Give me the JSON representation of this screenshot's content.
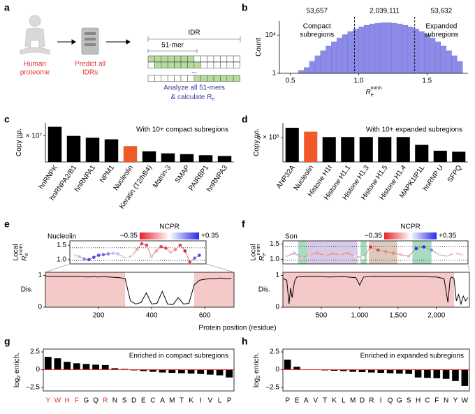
{
  "panel_labels": [
    "a",
    "b",
    "c",
    "d",
    "e",
    "f",
    "g",
    "h"
  ],
  "schematic": {
    "human_label": [
      "Human",
      "proteome"
    ],
    "predict_label": [
      "Predict all",
      "IDRs"
    ],
    "idr": "IDR",
    "kmer": "51-mer",
    "ellipsis": "...",
    "analyze": "Analyze all 51-mers",
    "calc": "& calculate R",
    "calc_sub": "e"
  },
  "position_axis_label": "Protein position (residue)",
  "chart_data": [
    {
      "type": "histogram",
      "ylabel": "Count",
      "xlabel": "R",
      "xlabel_sub": "e",
      "xlabel_sup": "norm",
      "log_y": true,
      "bins": [
        0.56,
        0.6,
        0.64,
        0.68,
        0.72,
        0.76,
        0.8,
        0.84,
        0.88,
        0.92,
        0.96,
        1,
        1.04,
        1.08,
        1.12,
        1.16,
        1.2,
        1.24,
        1.28,
        1.32,
        1.36,
        1.4,
        1.44,
        1.48,
        1.52,
        1.56,
        1.6,
        1.64,
        1.68,
        1.72,
        1.76
      ],
      "counts": [
        2,
        4,
        18,
        68,
        229,
        708,
        1950,
        4900,
        11200,
        22900,
        42700,
        70800,
        107000,
        145000,
        178000,
        195000,
        195000,
        178000,
        145000,
        107000,
        70800,
        42700,
        22900,
        11200,
        4900,
        1950,
        708,
        229,
        68,
        18
      ],
      "color": "#8c8ce8",
      "edge_color": "#6e6ed4",
      "ylim": [
        1,
        300000
      ],
      "yticks": [
        1,
        {
          "value": 10000,
          "label": "10⁴"
        }
      ],
      "xlim": [
        0.42,
        1.8
      ],
      "xticks": [
        0.5,
        {
          "value": 1,
          "label": "1.0"
        },
        1.5
      ],
      "thresholds": [
        0.97,
        1.41
      ],
      "count_labels": [
        "53,657",
        "2,039,111",
        "53,632"
      ],
      "region_labels": [
        [
          "Compact",
          "subregions"
        ],
        [
          "Expanded",
          "subregions"
        ]
      ]
    },
    {
      "type": "bar",
      "ylabel": "Copy no.",
      "annotation": "With 10+ compact subregions",
      "categories": [
        "hnRNPK",
        "hnRNPA2/B1",
        "hnRNPA1",
        "NPM1",
        "Nucleolin",
        "Keratin (T2/hB4)",
        "Matrin-3",
        "SMAP",
        "PAIRBP1",
        "hnRNPA3"
      ],
      "values": [
        13500000,
        10000000,
        9300000,
        8700000,
        6100000,
        4100000,
        3300000,
        3000000,
        2600000,
        2300000
      ],
      "colors": [
        "#000000",
        "#000000",
        "#000000",
        "#000000",
        "#f05a28",
        "#000000",
        "#000000",
        "#000000",
        "#000000",
        "#000000"
      ],
      "ylim": [
        0,
        15000000
      ],
      "yticks": [
        {
          "value": 10000000,
          "label": "1 × 10⁷"
        }
      ]
    },
    {
      "type": "bar",
      "ylabel": "Copy no.",
      "annotation": "With 10+ expanded subregions",
      "categories": [
        "ANP32A",
        "Nucleolin",
        "Histone H1t",
        "Histone H1.1",
        "Histone H1.3",
        "Histone H1.5",
        "Histone H1.4",
        "MAPK1IP1L",
        "hnRNP U",
        "SFPQ"
      ],
      "values": [
        7000000,
        6200000,
        5100000,
        5100000,
        5100000,
        5100000,
        5100000,
        3500000,
        2300000,
        2100000
      ],
      "colors": [
        "#000000",
        "#f05a28",
        "#000000",
        "#000000",
        "#000000",
        "#000000",
        "#000000",
        "#000000",
        "#000000",
        "#000000"
      ],
      "ylim": [
        0,
        8000000
      ],
      "yticks": [
        {
          "value": 5000000,
          "label": "5 × 10⁶"
        }
      ]
    },
    {
      "type": "profile",
      "name": "Nucleolin",
      "colorbar_title": "NCPR",
      "clim": [
        -0.35,
        0.35
      ],
      "cticks": [
        {
          "value": -0.35,
          "label": "−0.35"
        },
        {
          "value": 0.35,
          "label": "+0.35"
        }
      ],
      "cmap": [
        "#e8202a",
        "#ffffff",
        "#2a2ae8"
      ],
      "ylabel": "Local",
      "ylabel_main": "R",
      "ylabel_sub": "e",
      "ylabel_sup": "norm",
      "x": [
        25,
        50,
        75,
        100,
        125,
        150,
        175,
        200,
        225,
        250,
        275,
        300,
        325,
        350,
        375,
        400,
        425,
        450,
        475,
        500,
        525,
        550,
        575,
        600,
        625,
        650,
        675
      ],
      "re": [
        1.15,
        1.1,
        1.02,
        1.0,
        1.08,
        1.15,
        1.17,
        1.2,
        1.22,
        1.2,
        1.1,
        1.05,
        1.15,
        1.35,
        1.55,
        1.5,
        1.1,
        1.3,
        1.45,
        1.4,
        1.25,
        1.35,
        1.5,
        1.3,
        0.92,
        1.05,
        1.15
      ],
      "ncpr": [
        -0.05,
        0.1,
        0.2,
        0.3,
        0.3,
        0.3,
        0.25,
        0.2,
        0.1,
        0.1,
        0.05,
        0,
        -0.05,
        -0.15,
        -0.3,
        -0.3,
        -0.1,
        -0.15,
        -0.3,
        -0.3,
        -0.1,
        -0.2,
        -0.3,
        -0.35,
        -0.3,
        0.25,
        0.3
      ],
      "ylim": [
        0.85,
        1.65
      ],
      "yticks": [
        {
          "value": 1,
          "label": "1.0"
        },
        {
          "value": 1.5,
          "label": "1.5"
        }
      ],
      "thresholds": [
        0.97,
        1.41
      ],
      "dis_label": "Dis.",
      "dis_x": [
        0,
        20,
        40,
        60,
        80,
        100,
        120,
        140,
        160,
        180,
        200,
        220,
        240,
        260,
        280,
        300,
        320,
        340,
        360,
        380,
        400,
        420,
        440,
        460,
        480,
        500,
        520,
        540,
        560,
        580,
        600,
        620,
        640,
        660,
        680,
        700
      ],
      "dis": [
        0.98,
        0.97,
        0.97,
        0.96,
        0.97,
        0.96,
        0.97,
        0.96,
        0.95,
        0.96,
        0.95,
        0.96,
        0.95,
        0.94,
        0.93,
        0.9,
        0.2,
        0.1,
        0.15,
        0.45,
        0.1,
        0.12,
        0.5,
        0.1,
        0.08,
        0.3,
        0.1,
        0.12,
        0.7,
        0.85,
        0.88,
        0.9,
        0.9,
        0.92,
        0.9,
        0.91
      ],
      "dis_ylim": [
        0,
        1.1
      ],
      "dis_yticks": [
        0,
        1
      ],
      "regions": [
        {
          "start": 0,
          "end": 300,
          "color": "#f6c9c9"
        },
        {
          "start": 560,
          "end": 710,
          "color": "#f6c9c9"
        }
      ],
      "xlim": [
        0,
        710
      ],
      "xticks": [
        200,
        400,
        600
      ]
    },
    {
      "type": "profile",
      "name": "Son",
      "colorbar_title": "NCPR",
      "clim": [
        -0.35,
        0.35
      ],
      "cticks": [
        {
          "value": -0.35,
          "label": "−0.35"
        },
        {
          "value": 0.35,
          "label": "+0.35"
        }
      ],
      "cmap": [
        "#e8202a",
        "#ffffff",
        "#2a2ae8"
      ],
      "ylabel": "Local",
      "ylabel_main": "R",
      "ylabel_sub": "e",
      "ylabel_sup": "norm",
      "x": [
        50,
        150,
        250,
        350,
        450,
        550,
        650,
        750,
        850,
        950,
        1050,
        1150,
        1250,
        1350,
        1450,
        1550,
        1650,
        1750,
        1850,
        1950,
        2050,
        2150,
        2250,
        2350
      ],
      "re": [
        1.1,
        1.2,
        1.05,
        1.15,
        1.2,
        1.12,
        1.18,
        1.15,
        1.2,
        1.1,
        1.05,
        1.4,
        1.3,
        1.25,
        1.2,
        1.15,
        1.1,
        1.35,
        1.4,
        1.3,
        1.15,
        1.1,
        1.2,
        1.15
      ],
      "ncpr": [
        0.05,
        0.1,
        -0.1,
        -0.1,
        -0.15,
        -0.1,
        -0.15,
        -0.1,
        -0.15,
        -0.05,
        0,
        -0.35,
        -0.3,
        -0.2,
        -0.2,
        -0.1,
        0.1,
        0.35,
        0.35,
        0.2,
        0.05,
        -0.05,
        0,
        -0.05
      ],
      "ylim": [
        0.85,
        1.6
      ],
      "yticks": [
        {
          "value": 1,
          "label": "1.0"
        },
        {
          "value": 1.5,
          "label": "1.5"
        }
      ],
      "thresholds": [
        0.97,
        1.41
      ],
      "bands": [
        {
          "start": 200,
          "end": 320,
          "color": "#a8dcc0"
        },
        {
          "start": 320,
          "end": 980,
          "color": "#d8cbe8"
        },
        {
          "start": 1020,
          "end": 1100,
          "color": "#a8dcc0"
        },
        {
          "start": 1130,
          "end": 1500,
          "color": "#dccabd"
        },
        {
          "start": 1700,
          "end": 1950,
          "color": "#a8dcc0"
        }
      ],
      "dis_label": "Dis.",
      "dis_x": [
        0,
        50,
        80,
        100,
        120,
        150,
        180,
        250,
        400,
        600,
        800,
        950,
        1000,
        1050,
        1200,
        1400,
        1600,
        1800,
        2000,
        2100,
        2150,
        2180,
        2200,
        2230,
        2260,
        2290,
        2320,
        2350,
        2380,
        2410
      ],
      "dis": [
        0.9,
        0.85,
        0.1,
        0.6,
        0.3,
        0.8,
        0.95,
        0.96,
        0.97,
        0.95,
        0.96,
        0.93,
        0.7,
        0.95,
        0.97,
        0.96,
        0.97,
        0.96,
        0.95,
        0.9,
        0.15,
        0.9,
        0.95,
        0.9,
        0.2,
        0.4,
        0.1,
        0.35,
        0.2,
        0.3
      ],
      "dis_ylim": [
        0,
        1.1
      ],
      "dis_yticks": [
        0,
        1
      ],
      "regions": [
        {
          "start": 0,
          "end": 2230,
          "color": "#f6c9c9"
        }
      ],
      "xlim": [
        0,
        2430
      ],
      "xticks": [
        500,
        {
          "value": 1000,
          "label": "1,000"
        },
        {
          "value": 1500,
          "label": "1,500"
        },
        {
          "value": 2000,
          "label": "2,000"
        }
      ]
    },
    {
      "type": "bar",
      "ylabel": "log",
      "ylabel_sub": "2",
      "ylabel_tail": " enrich.",
      "annotation": "Enriched in compact subregions",
      "zero_line_color": "#e03030",
      "categories": [
        "Y",
        "W",
        "H",
        "F",
        "G",
        "Q",
        "R",
        "N",
        "S",
        "D",
        "E",
        "C",
        "A",
        "M",
        "T",
        "K",
        "I",
        "V",
        "L",
        "P"
      ],
      "values": [
        1.8,
        1.6,
        1.1,
        0.9,
        0.8,
        0.7,
        0.65,
        0.2,
        0.1,
        -0.1,
        -0.2,
        -0.3,
        -0.4,
        -0.45,
        -0.5,
        -0.55,
        -0.6,
        -0.7,
        -0.8,
        -1.1
      ],
      "color": "#000000",
      "category_colors": [
        "#e03030",
        "#e03030",
        "#e03030",
        "#e03030",
        "#000000",
        "#000000",
        "#e03030",
        "#000000",
        "#000000",
        "#000000",
        "#000000",
        "#000000",
        "#000000",
        "#000000",
        "#000000",
        "#000000",
        "#000000",
        "#000000",
        "#000000",
        "#000000"
      ],
      "ylim": [
        -3,
        2.9
      ],
      "yticks": [
        2.5,
        0,
        {
          "value": -2.5,
          "label": "–2.5"
        }
      ]
    },
    {
      "type": "bar",
      "ylabel": "log",
      "ylabel_sub": "2",
      "ylabel_tail": " enrich.",
      "annotation": "Enriched in expanded subregions",
      "zero_line_color": "#e03030",
      "categories": [
        "P",
        "E",
        "A",
        "V",
        "T",
        "K",
        "L",
        "M",
        "D",
        "R",
        "I",
        "Q",
        "G",
        "S",
        "H",
        "C",
        "F",
        "N",
        "Y",
        "W"
      ],
      "values": [
        1.4,
        0.4,
        0.02,
        -0.05,
        -0.1,
        -0.15,
        -0.2,
        -0.3,
        -0.35,
        -0.4,
        -0.45,
        -0.5,
        -0.55,
        -0.6,
        -1.1,
        -1.15,
        -1.2,
        -1.3,
        -1.6,
        -2.3
      ],
      "color": "#000000",
      "ylim": [
        -3,
        2.9
      ],
      "yticks": [
        2.5,
        0,
        {
          "value": -2.5,
          "label": "–2.5"
        }
      ]
    }
  ]
}
